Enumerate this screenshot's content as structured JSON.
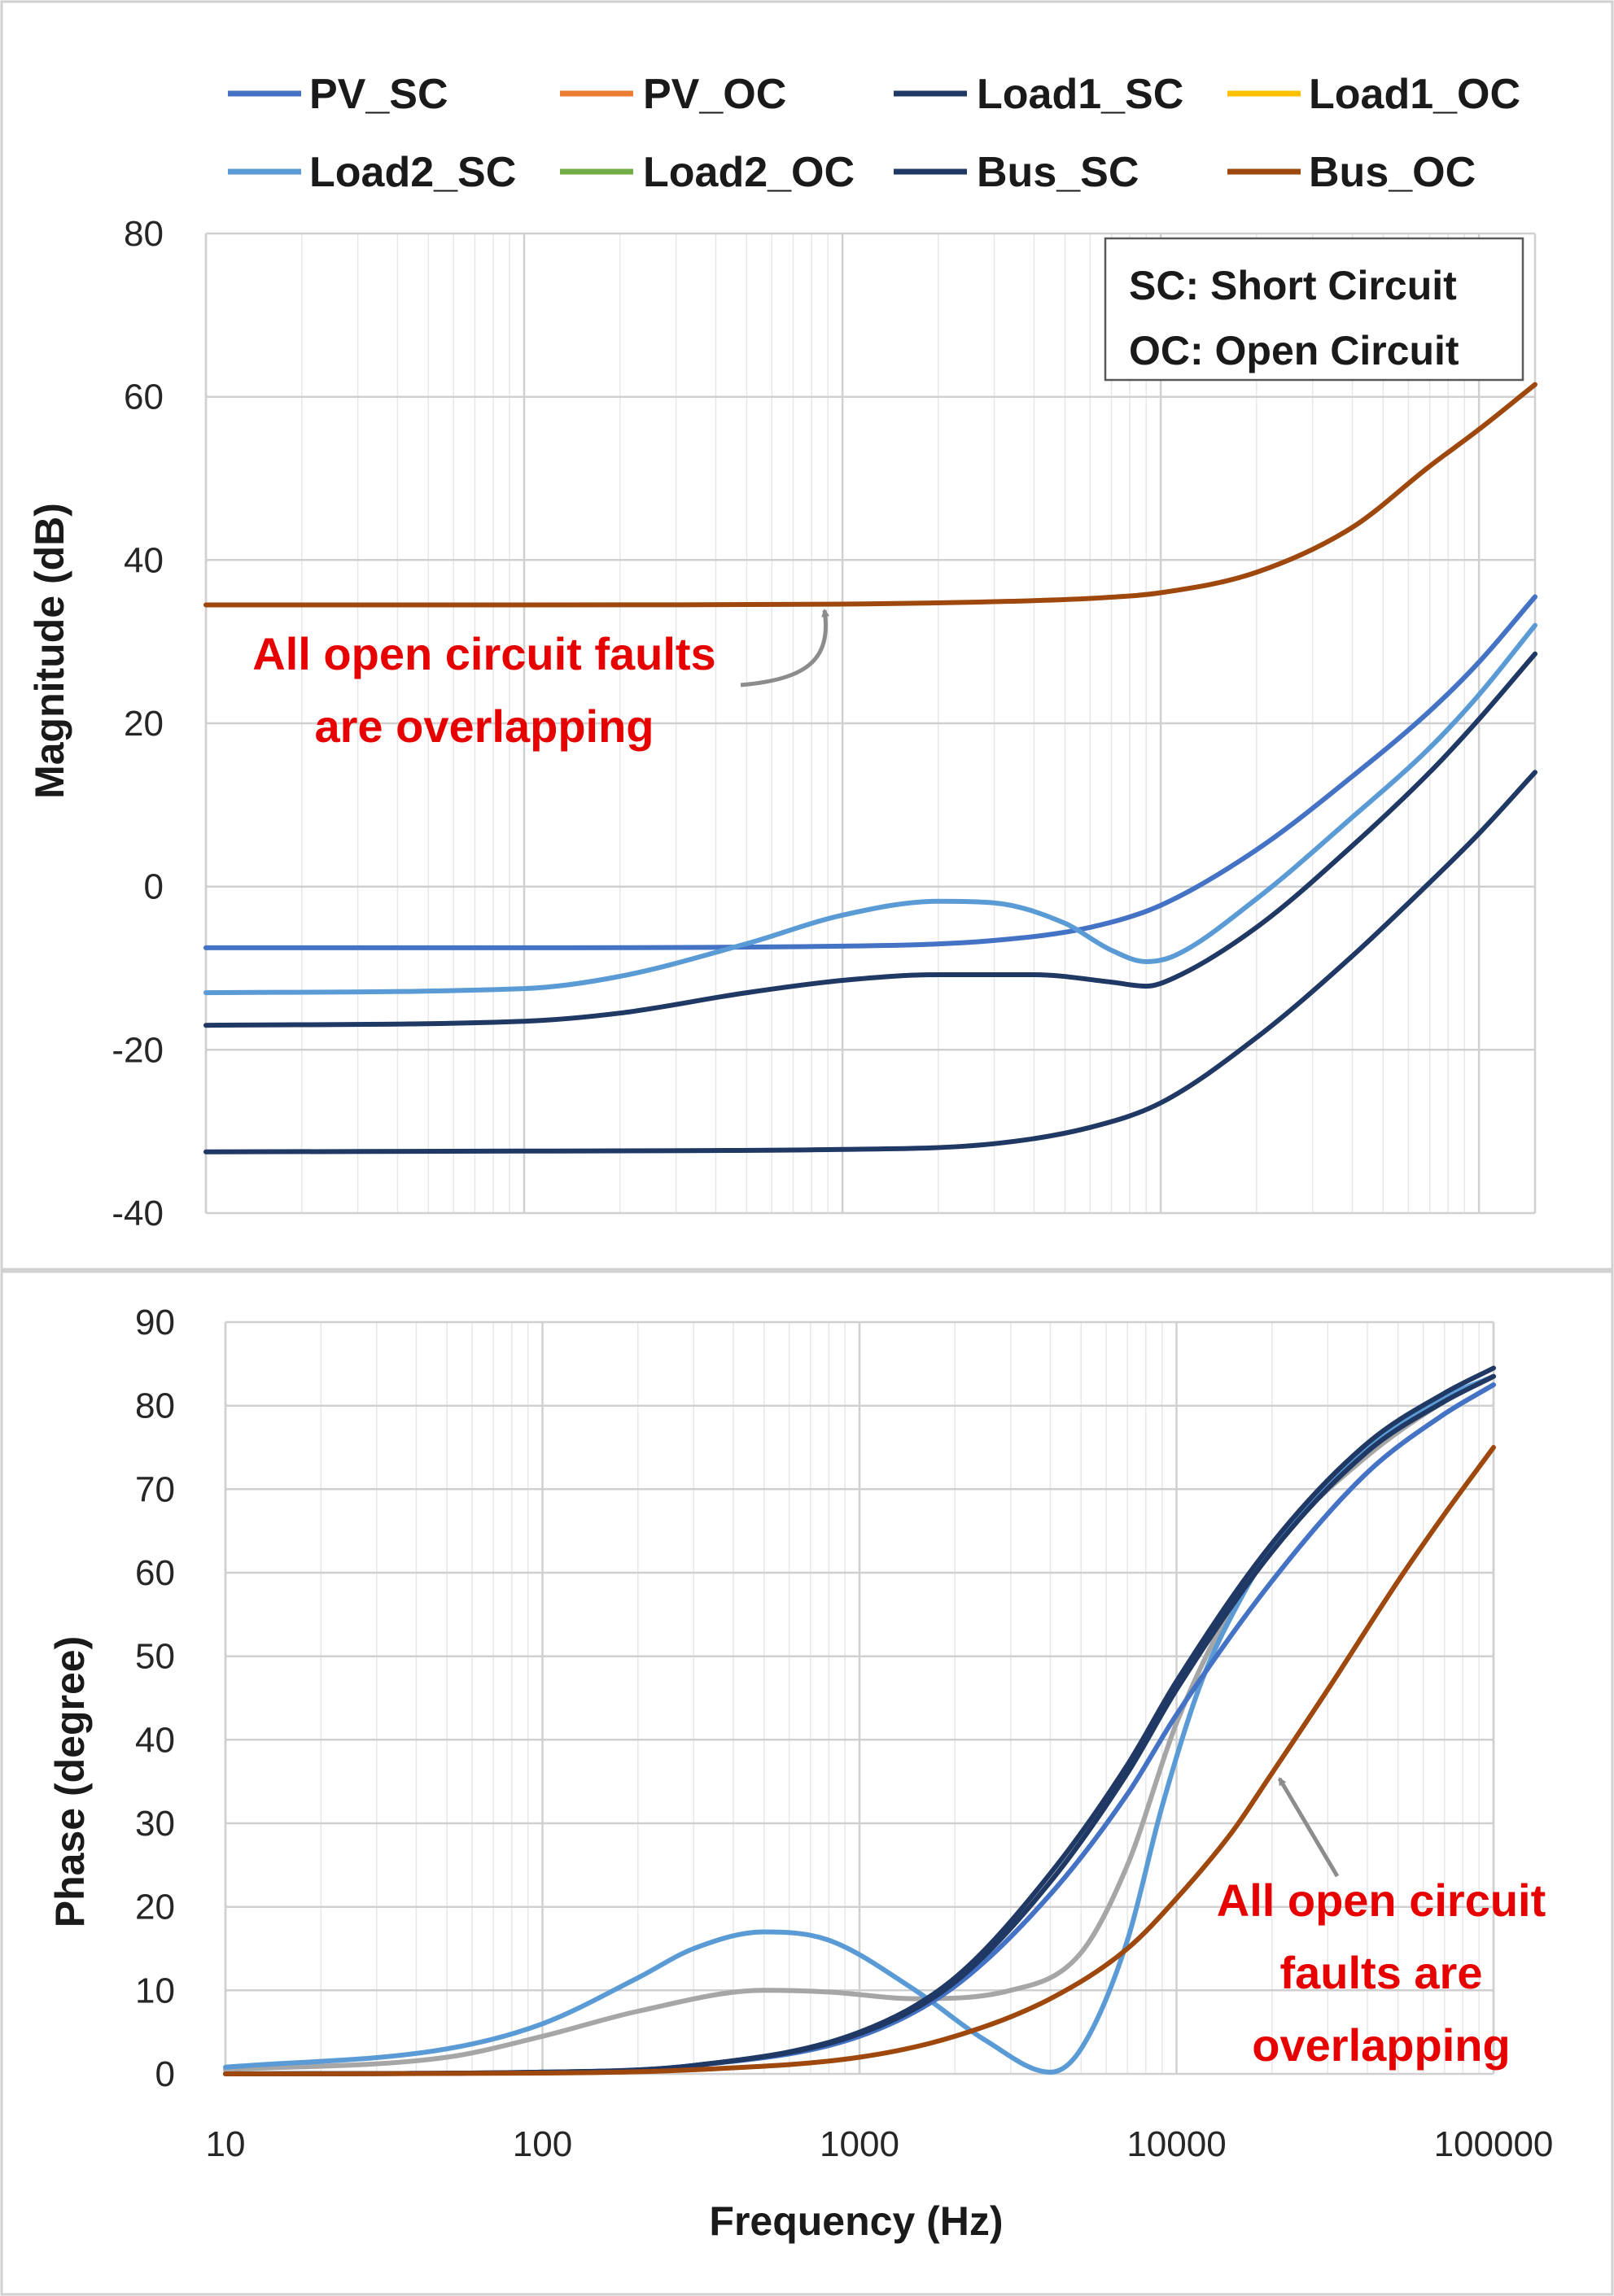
{
  "colors": {
    "annotation_text": "#E60000",
    "annotation_arrow": "#8C8C8C",
    "grid_major": "#D0D0D0",
    "grid_minor": "#E7E7E7",
    "panel_border": "#D0D0D0"
  },
  "legend": [
    {
      "name": "PV_SC",
      "color": "#4472C4"
    },
    {
      "name": "PV_OC",
      "color": "#ED7D31"
    },
    {
      "name": "Load1_SC",
      "color": "#1F3864"
    },
    {
      "name": "Load1_OC",
      "color": "#FFC000"
    },
    {
      "name": "Load2_SC",
      "color": "#5B9BD5"
    },
    {
      "name": "Load2_OC",
      "color": "#70AD47"
    },
    {
      "name": "Bus_SC",
      "color": "#203864"
    },
    {
      "name": "Bus_OC",
      "color": "#9E480E"
    }
  ],
  "chart_data": [
    {
      "type": "line",
      "ylabel": "Magnitude (dB)",
      "xlabel": "",
      "x_scale": "log",
      "xlim": [
        10,
        150000
      ],
      "ylim": [
        -40,
        80
      ],
      "yticks": [
        "-40",
        "-20",
        "0",
        "20",
        "40",
        "60",
        "80"
      ],
      "xticks": [],
      "grid": true,
      "note_box": [
        "SC: Short Circuit",
        "OC: Open Circuit"
      ],
      "annotation": [
        "All open circuit faults",
        "are overlapping"
      ],
      "series": [
        {
          "name": "Bus_OC",
          "color": "#9E480E",
          "x": [
            10,
            100,
            1000,
            3000,
            6000,
            10000,
            20000,
            40000,
            70000,
            100000,
            150000
          ],
          "y": [
            34.5,
            34.5,
            34.6,
            34.9,
            35.3,
            36.0,
            38.5,
            44.0,
            51.5,
            56.0,
            61.5
          ]
        },
        {
          "name": "PV_SC",
          "color": "#4472C4",
          "x": [
            10,
            100,
            1000,
            3000,
            6000,
            10000,
            20000,
            40000,
            70000,
            100000,
            150000
          ],
          "y": [
            -7.5,
            -7.5,
            -7.3,
            -6.6,
            -5.0,
            -2.3,
            4.5,
            13.5,
            21.5,
            27.5,
            35.5
          ]
        },
        {
          "name": "Load2_SC",
          "color": "#5B9BD5",
          "x": [
            10,
            100,
            200,
            500,
            1000,
            2000,
            3000,
            5000,
            7000,
            9000,
            11000,
            20000,
            40000,
            70000,
            100000,
            150000
          ],
          "y": [
            -13.0,
            -12.5,
            -11.0,
            -7.0,
            -3.5,
            -1.8,
            -2.0,
            -4.5,
            -7.8,
            -9.2,
            -8.5,
            -1.5,
            8.5,
            17.0,
            23.5,
            32.0
          ]
        },
        {
          "name": "Load1_SC",
          "color": "#1F3864",
          "x": [
            10,
            100,
            200,
            500,
            1000,
            2000,
            4000,
            7000,
            9000,
            11000,
            20000,
            40000,
            70000,
            100000,
            150000
          ],
          "y": [
            -17.0,
            -16.5,
            -15.5,
            -13.0,
            -11.5,
            -10.8,
            -10.8,
            -11.7,
            -12.2,
            -11.2,
            -5.0,
            5.0,
            14.0,
            20.5,
            28.5
          ]
        },
        {
          "name": "Bus_SC",
          "color": "#203864",
          "x": [
            10,
            100,
            1000,
            3000,
            6000,
            10000,
            20000,
            40000,
            70000,
            100000,
            150000
          ],
          "y": [
            -32.5,
            -32.4,
            -32.2,
            -31.5,
            -29.5,
            -26.5,
            -18.5,
            -8.5,
            0.5,
            6.5,
            14.0
          ]
        }
      ]
    },
    {
      "type": "line",
      "ylabel": "Phase (degree)",
      "xlabel": "Frequency (Hz)",
      "x_scale": "log",
      "xlim": [
        10,
        100000
      ],
      "ylim": [
        0,
        90
      ],
      "yticks": [
        "0",
        "10",
        "20",
        "30",
        "40",
        "50",
        "60",
        "70",
        "80",
        "90"
      ],
      "xticks": [
        "10",
        "100",
        "1000",
        "10000",
        "100000"
      ],
      "grid": true,
      "annotation": [
        "All open circuit",
        "faults are",
        "overlapping"
      ],
      "series": [
        {
          "name": "",
          "color": "#A6A6A6",
          "x": [
            10,
            50,
            100,
            200,
            500,
            800,
            1500,
            3000,
            5000,
            7000,
            10000,
            15000,
            20000,
            40000,
            70000,
            100000
          ],
          "y": [
            0.5,
            2.0,
            4.5,
            7.5,
            10.0,
            9.8,
            9.0,
            10.0,
            14.5,
            25.0,
            42.0,
            56.0,
            63.0,
            74.0,
            80.5,
            83.5
          ]
        },
        {
          "name": "Load2_SC",
          "color": "#5B9BD5",
          "x": [
            10,
            50,
            100,
            200,
            300,
            500,
            800,
            1500,
            2500,
            4000,
            5000,
            7000,
            9000,
            12000,
            16000,
            20000,
            40000,
            70000,
            100000
          ],
          "y": [
            0.8,
            3.0,
            6.0,
            11.5,
            15.0,
            17.0,
            16.0,
            10.0,
            4.0,
            0.2,
            3.0,
            16.0,
            32.0,
            47.0,
            57.0,
            63.0,
            75.0,
            81.0,
            83.5
          ]
        },
        {
          "name": "PV_SC",
          "color": "#4472C4",
          "x": [
            10,
            100,
            300,
            1000,
            2000,
            4000,
            7000,
            10000,
            20000,
            40000,
            70000,
            100000
          ],
          "y": [
            0.0,
            0.2,
            1.0,
            4.5,
            10.5,
            21.5,
            33.5,
            43.0,
            59.0,
            72.0,
            79.0,
            82.5
          ]
        },
        {
          "name": "Load1_SC",
          "color": "#1F3864",
          "x": [
            10,
            100,
            300,
            1000,
            2000,
            4000,
            7000,
            10000,
            20000,
            40000,
            70000,
            100000
          ],
          "y": [
            0.0,
            0.2,
            1.0,
            4.8,
            11.0,
            23.0,
            36.0,
            46.0,
            62.5,
            74.5,
            80.5,
            83.5
          ]
        },
        {
          "name": "Bus_SC",
          "color": "#203864",
          "x": [
            10,
            100,
            300,
            1000,
            2000,
            4000,
            7000,
            10000,
            20000,
            40000,
            70000,
            100000
          ],
          "y": [
            0.0,
            0.2,
            1.0,
            5.0,
            11.5,
            24.0,
            37.0,
            47.0,
            63.5,
            75.5,
            81.5,
            84.5
          ]
        },
        {
          "name": "Bus_OC",
          "color": "#9E480E",
          "x": [
            10,
            100,
            300,
            1000,
            2000,
            4000,
            7000,
            10000,
            15000,
            20000,
            30000,
            50000,
            70000,
            100000
          ],
          "y": [
            0.0,
            0.1,
            0.5,
            2.0,
            4.5,
            9.0,
            15.0,
            21.0,
            29.0,
            36.0,
            46.0,
            59.0,
            67.0,
            75.0
          ]
        }
      ]
    }
  ]
}
